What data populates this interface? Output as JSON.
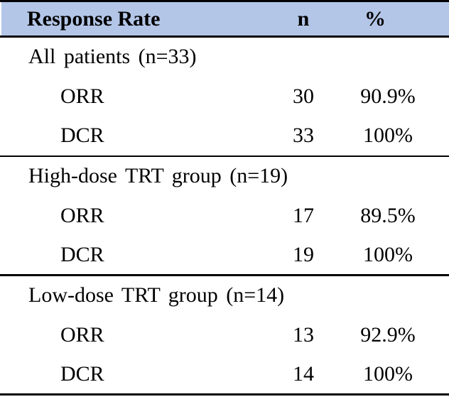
{
  "table": {
    "header": {
      "response_rate": "Response Rate",
      "n": "n",
      "percent": "%"
    },
    "sections": [
      {
        "title": "All patients (n=33)",
        "rows": [
          {
            "label": "ORR",
            "n": "30",
            "percent": "90.9%"
          },
          {
            "label": "DCR",
            "n": "33",
            "percent": "100%"
          }
        ]
      },
      {
        "title": "High-dose TRT group (n=19)",
        "rows": [
          {
            "label": "ORR",
            "n": "17",
            "percent": "89.5%"
          },
          {
            "label": "DCR",
            "n": "19",
            "percent": "100%"
          }
        ]
      },
      {
        "title": "Low-dose TRT group (n=14)",
        "rows": [
          {
            "label": "ORR",
            "n": "13",
            "percent": "92.9%"
          },
          {
            "label": "DCR",
            "n": "14",
            "percent": "100%"
          }
        ]
      }
    ],
    "colors": {
      "header_bg": "#B3C6E7",
      "border": "#000000",
      "text": "#000000"
    }
  },
  "chart_data": {
    "type": "table",
    "title": "Response Rate",
    "columns": [
      "Response Rate",
      "n",
      "%"
    ],
    "rows": [
      [
        "All patients (n=33)",
        null,
        null
      ],
      [
        "ORR",
        30,
        "90.9%"
      ],
      [
        "DCR",
        33,
        "100%"
      ],
      [
        "High-dose TRT group (n=19)",
        null,
        null
      ],
      [
        "ORR",
        17,
        "89.5%"
      ],
      [
        "DCR",
        19,
        "100%"
      ],
      [
        "Low-dose TRT group (n=14)",
        null,
        null
      ],
      [
        "ORR",
        13,
        "92.9%"
      ],
      [
        "DCR",
        14,
        "100%"
      ]
    ]
  }
}
